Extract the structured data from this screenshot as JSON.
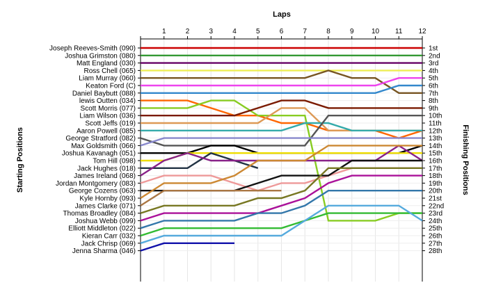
{
  "chart_data": {
    "type": "line",
    "title": "Laps",
    "ylabel": "Starting Positions",
    "ylabel_right": "Finishing Positions",
    "laps": [
      1,
      2,
      3,
      4,
      5,
      6,
      7,
      8,
      9,
      10,
      11,
      12
    ],
    "finishing_labels": [
      "1st",
      "2nd",
      "3rd",
      "4th",
      "5th",
      "6th",
      "7th",
      "8th",
      "9th",
      "10th",
      "11th",
      "12th",
      "13th",
      "14th",
      "15th",
      "16th",
      "17th",
      "18th",
      "19th",
      "20th",
      "21st",
      "22nd",
      "23rd",
      "24th",
      "25th",
      "26th",
      "27th",
      "28th"
    ],
    "series": [
      {
        "name": "Joseph Reeves-Smith (090)",
        "color": "#cc0000",
        "positions": [
          1,
          1,
          1,
          1,
          1,
          1,
          1,
          1,
          1,
          1,
          1,
          1,
          1
        ]
      },
      {
        "name": "Joshua Grimston (080)",
        "color": "#339933",
        "positions": [
          2,
          2,
          2,
          2,
          2,
          2,
          2,
          2,
          2,
          2,
          2,
          2,
          2
        ]
      },
      {
        "name": "Matt England (030)",
        "color": "#660066",
        "positions": [
          3,
          3,
          3,
          3,
          3,
          3,
          3,
          3,
          3,
          3,
          3,
          3,
          3
        ]
      },
      {
        "name": "Ross Chell (065)",
        "color": "#eeee55",
        "positions": [
          4,
          4,
          4,
          4,
          4,
          4,
          4,
          4,
          4,
          4,
          4,
          4,
          4
        ]
      },
      {
        "name": "Liam Murray (060)",
        "color": "#775522",
        "positions": [
          5,
          5,
          5,
          5,
          5,
          5,
          5,
          5,
          4,
          5,
          5,
          7,
          7
        ]
      },
      {
        "name": "Keaton Ford (C)",
        "color": "#ee44ee",
        "positions": [
          6,
          6,
          6,
          6,
          6,
          6,
          6,
          6,
          6,
          6,
          6,
          5,
          5
        ]
      },
      {
        "name": "Daniel Baybutt (088)",
        "color": "#3388cc",
        "positions": [
          7,
          7,
          7,
          7,
          7,
          7,
          7,
          7,
          7,
          7,
          7,
          6,
          6
        ]
      },
      {
        "name": "lewis Outten (034)",
        "color": "#ff6600",
        "positions": [
          8,
          8,
          8,
          9,
          10,
          10,
          11,
          11,
          12,
          12,
          12,
          13,
          12
        ]
      },
      {
        "name": "Scott Morris (077)",
        "color": "#88cc22",
        "positions": [
          9,
          9,
          9,
          8,
          8,
          10,
          10,
          10,
          24,
          24,
          24,
          23,
          23
        ]
      },
      {
        "name": "Liam Wilson (036)",
        "color": "#7a1a00",
        "positions": [
          10,
          10,
          10,
          10,
          10,
          9,
          8,
          8,
          9,
          9,
          9,
          9,
          9
        ]
      },
      {
        "name": "Scott Jeffs (019)",
        "color": "#dd9955",
        "positions": [
          11,
          11,
          11,
          11,
          11,
          11,
          9,
          9,
          12,
          12,
          12,
          12,
          12
        ]
      },
      {
        "name": "Aaron Powell (085)",
        "color": "#33aaaa",
        "positions": [
          12,
          12,
          12,
          12,
          12,
          12,
          12,
          11,
          11,
          12,
          12,
          12,
          12
        ]
      },
      {
        "name": "George Stratford (082)",
        "color": "#555555",
        "positions": [
          13,
          14,
          14,
          14,
          14,
          14,
          14,
          14,
          10,
          10,
          10,
          10,
          10
        ]
      },
      {
        "name": "Max Goldsmith (066)",
        "color": "#8888cc",
        "positions": [
          14,
          13,
          13,
          13,
          13,
          13,
          13,
          13,
          13,
          13,
          13,
          13,
          13
        ]
      },
      {
        "name": "Joshua Kavanagh (051)",
        "color": "#000000",
        "positions": [
          15,
          15,
          15,
          14,
          14,
          15,
          15,
          15,
          15,
          15,
          15,
          15,
          14
        ]
      },
      {
        "name": "Tom Hill (098)",
        "color": "#eedd00",
        "positions": [
          16,
          16,
          15,
          15,
          15,
          15,
          15,
          15,
          15,
          15,
          15,
          15,
          15
        ]
      },
      {
        "name": "Jack Hughes (018)",
        "color": "#223344",
        "positions": [
          17,
          17,
          17,
          15,
          16,
          17
        ]
      },
      {
        "name": "James Ireland (068)",
        "color": "#882288",
        "positions": [
          18,
          16,
          15,
          16,
          16,
          16,
          16,
          16,
          16,
          16,
          16,
          14,
          16
        ]
      },
      {
        "name": "Jordan Montgomery (083)",
        "color": "#ee9999",
        "positions": [
          19,
          18,
          18,
          18,
          19,
          20,
          19,
          19,
          18,
          17,
          17,
          17,
          17
        ]
      },
      {
        "name": "George Cozens (063)",
        "color": "#111111",
        "positions": [
          20,
          20,
          20,
          20,
          20,
          19,
          18,
          18,
          18,
          16,
          16,
          16,
          16
        ]
      },
      {
        "name": "Kyle Hornby (093)",
        "color": "#cc8833",
        "positions": [
          21,
          19,
          19,
          19,
          18,
          16,
          16,
          16,
          14,
          14,
          14,
          14,
          14
        ]
      },
      {
        "name": "James Clarke (071)",
        "color": "#aa7744",
        "positions": [
          22,
          20,
          20,
          20,
          20,
          20,
          20
        ]
      },
      {
        "name": "Thomas Broadley (084)",
        "color": "#777722",
        "positions": [
          23,
          22,
          22,
          22,
          22,
          21,
          21,
          20,
          17,
          17,
          17,
          17,
          17
        ]
      },
      {
        "name": "Joshua Webb (099)",
        "color": "#aa1199",
        "positions": [
          24,
          23,
          23,
          23,
          23,
          23,
          22,
          21,
          19,
          18,
          18,
          18,
          18
        ]
      },
      {
        "name": "Elliott Middleton (022)",
        "color": "#3377aa",
        "positions": [
          25,
          24,
          24,
          24,
          24,
          23,
          23,
          22,
          20,
          20,
          20,
          20,
          20
        ]
      },
      {
        "name": "Kieran Carr (032)",
        "color": "#33bb33",
        "positions": [
          26,
          25,
          25,
          25,
          25,
          25,
          25,
          24,
          23,
          23,
          23,
          23,
          23
        ]
      },
      {
        "name": "Jack Chrisp (069)",
        "color": "#55aadd",
        "positions": [
          27,
          26,
          26,
          26,
          26,
          26,
          26,
          24,
          22,
          22,
          22,
          22,
          24
        ]
      },
      {
        "name": "Jenna Sharma (046)",
        "color": "#1111aa",
        "positions": [
          28,
          27,
          27,
          27,
          27
        ]
      }
    ]
  }
}
